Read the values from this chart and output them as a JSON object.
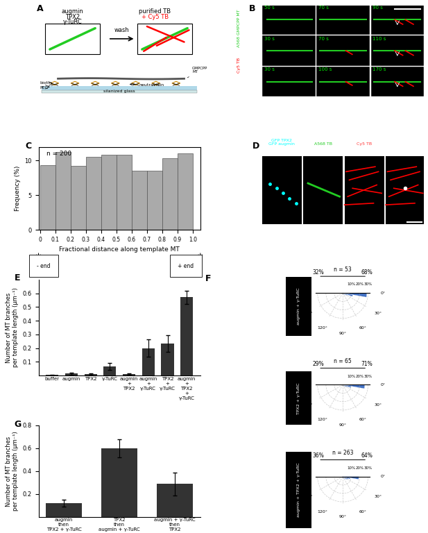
{
  "panel_C": {
    "n": 200,
    "bins": [
      0.05,
      0.15,
      0.25,
      0.35,
      0.45,
      0.55,
      0.65,
      0.75,
      0.85,
      0.95
    ],
    "frequencies": [
      9.3,
      11.2,
      9.2,
      10.5,
      10.8,
      10.8,
      8.5,
      8.5,
      10.3,
      11.0
    ],
    "xlabel": "Fractional distance along template MT",
    "ylabel": "Frequency (%)",
    "bar_color": "#aaaaaa",
    "ylim": [
      0,
      12
    ],
    "yticks": [
      0,
      5,
      10
    ]
  },
  "panel_E": {
    "categories": [
      "buffer",
      "augmin",
      "TPX2",
      "γ-TuRC",
      "augmin\n+\nTPX2",
      "augmin\n+\nγ-TuRC",
      "TPX2\n+\nγ-TuRC",
      "augmin\n+\nTPX2\n+\nγ-TuRC"
    ],
    "values": [
      0.005,
      0.015,
      0.01,
      0.065,
      0.01,
      0.2,
      0.235,
      0.57
    ],
    "errors": [
      0.003,
      0.008,
      0.005,
      0.025,
      0.005,
      0.065,
      0.06,
      0.05
    ],
    "bar_color": "#333333",
    "ylabel": "Number of MT branches\nper template length (μm⁻¹)",
    "ylim": [
      0,
      0.7
    ],
    "yticks": [
      0.1,
      0.2,
      0.3,
      0.4,
      0.5,
      0.6
    ]
  },
  "panel_G": {
    "categories": [
      "augmin\nthen\nTPX2 + γ-TuRC",
      "TPX2\nthen\naugmin + γ-TuRC",
      "augmin + γ-TuRC\nthen\nTPX2"
    ],
    "values": [
      0.12,
      0.6,
      0.29
    ],
    "errors": [
      0.03,
      0.08,
      0.1
    ],
    "bar_color": "#333333",
    "ylabel": "Number of MT branches\nper template length (μm⁻¹)",
    "ylim": [
      0,
      0.8
    ],
    "yticks": [
      0.2,
      0.4,
      0.6,
      0.8
    ]
  },
  "panel_F": [
    {
      "label": "augmin + γ-TuRC",
      "n": 53,
      "left_pct": "32%",
      "right_pct": "68%",
      "angles_deg": [
        0,
        10,
        20,
        30,
        40,
        50,
        60,
        70,
        80,
        90,
        100,
        110,
        120,
        130,
        140,
        150,
        160,
        170
      ],
      "radii": [
        0.285,
        0.12,
        0.06,
        0.04,
        0.03,
        0.02,
        0.025,
        0.02,
        0.015,
        0.02,
        0.015,
        0.01,
        0.01,
        0.005,
        0.005,
        0.005,
        0.005,
        0.005
      ],
      "rticks": [
        0.1,
        0.2,
        0.3
      ],
      "rmax": 0.32
    },
    {
      "label": "TPX2 + γ-TuRC",
      "n": 65,
      "left_pct": "29%",
      "right_pct": "71%",
      "angles_deg": [
        0,
        10,
        20,
        30,
        40,
        50,
        60,
        70,
        80,
        90,
        100,
        110,
        120,
        130,
        140,
        150,
        160,
        170
      ],
      "radii": [
        0.26,
        0.1,
        0.055,
        0.04,
        0.025,
        0.015,
        0.02,
        0.015,
        0.01,
        0.01,
        0.012,
        0.01,
        0.008,
        0.005,
        0.004,
        0.003,
        0.003,
        0.002
      ],
      "rticks": [
        0.1,
        0.2,
        0.3
      ],
      "rmax": 0.32
    },
    {
      "label": "augmin + TPX2 + γ-TuRC",
      "n": 263,
      "left_pct": "36%",
      "right_pct": "64%",
      "angles_deg": [
        0,
        10,
        20,
        30,
        40,
        50,
        60,
        70,
        80,
        90,
        100,
        110,
        120,
        130,
        140,
        150,
        160,
        170
      ],
      "radii": [
        0.19,
        0.09,
        0.065,
        0.055,
        0.04,
        0.03,
        0.03,
        0.025,
        0.02,
        0.02,
        0.018,
        0.015,
        0.015,
        0.01,
        0.01,
        0.01,
        0.008,
        0.005
      ],
      "rticks": [
        0.1,
        0.2,
        0.3
      ],
      "rmax": 0.32
    }
  ],
  "colors": {
    "rose_blue": "#4472c4",
    "bar_gray": "#aaaaaa",
    "bar_dark": "#333333"
  },
  "B_times": [
    [
      "50 s",
      "70 s",
      "90 s"
    ],
    [
      "30 s",
      "70 s",
      "110 s"
    ],
    [
      "30 s",
      "100 s",
      "170 s"
    ]
  ]
}
